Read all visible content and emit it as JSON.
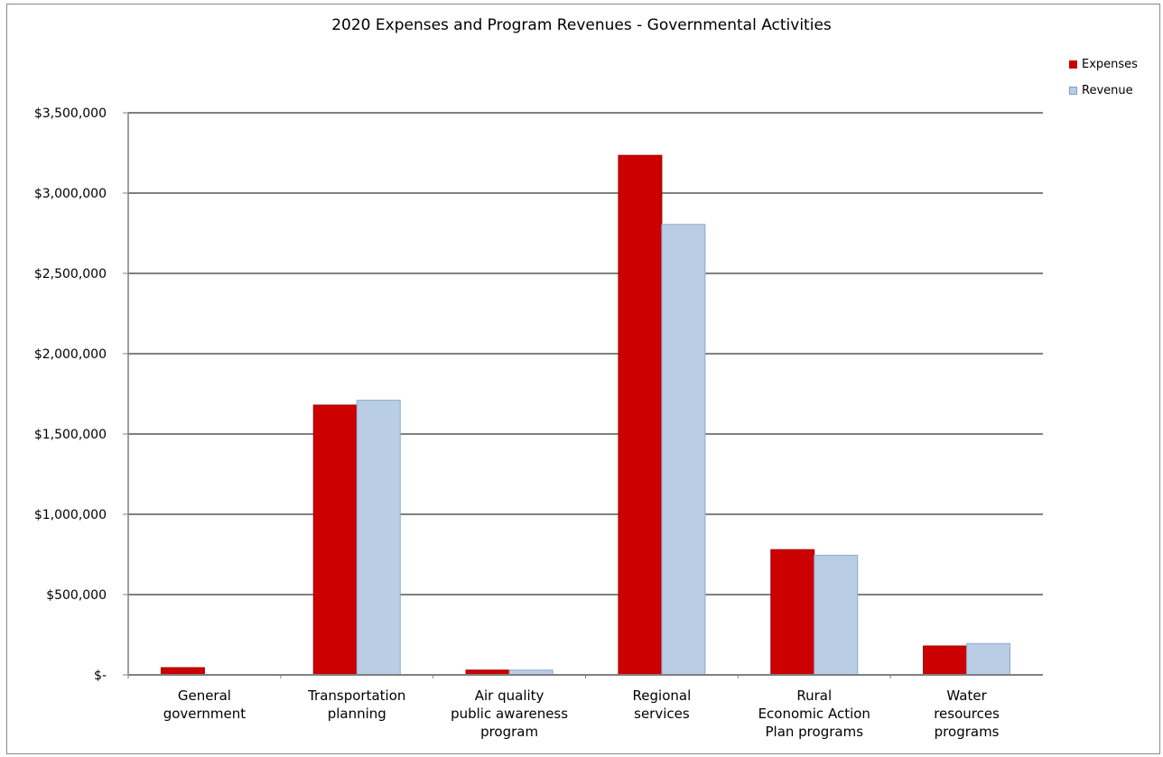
{
  "chart_data": {
    "type": "bar",
    "title": "2020 Expenses and Program Revenues - Governmental Activities",
    "categories": [
      [
        "General",
        "government"
      ],
      [
        "Transportation",
        "planning"
      ],
      [
        "Air quality",
        "public awareness",
        "program"
      ],
      [
        "Regional",
        "services"
      ],
      [
        "Rural",
        "Economic Action",
        "Plan programs"
      ],
      [
        "Water",
        "resources",
        "programs"
      ]
    ],
    "series": [
      {
        "name": "Expenses",
        "color": "#cc0000",
        "values": [
          45000,
          1680000,
          30000,
          3235000,
          780000,
          180000
        ]
      },
      {
        "name": "Revenue",
        "color": "#b9cde5",
        "values": [
          0,
          1710000,
          30000,
          2805000,
          745000,
          195000
        ]
      }
    ],
    "ylim": [
      0,
      3500000
    ],
    "yticks": [
      0,
      500000,
      1000000,
      1500000,
      2000000,
      2500000,
      3000000,
      3500000
    ],
    "ytick_labels": [
      "$-",
      "$500,000",
      "$1,000,000",
      "$1,500,000",
      "$2,000,000",
      "$2,500,000",
      "$3,000,000",
      "$3,500,000"
    ],
    "xlabel": "",
    "ylabel": "",
    "grid": true,
    "legend_position": "top-right"
  }
}
